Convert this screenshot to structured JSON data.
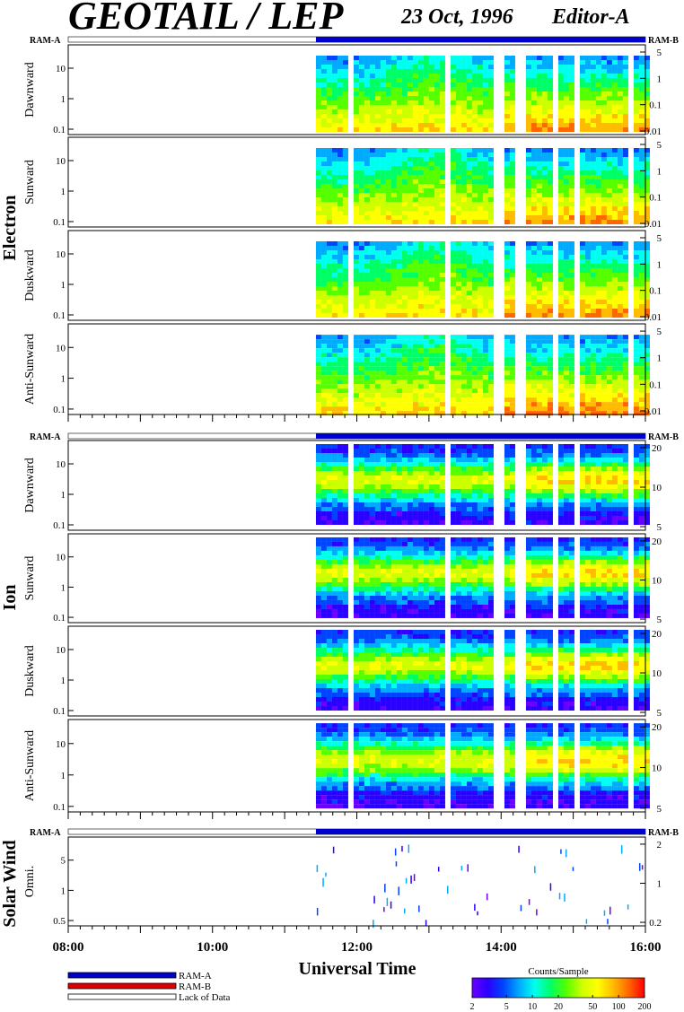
{
  "header": {
    "title": "GEOTAIL / LEP",
    "date": "23 Oct, 1996",
    "editor": "Editor-A"
  },
  "colors": {
    "ram_a": "#0000cc",
    "ram_b": "#dd0000",
    "spectrum": [
      "#6a00ff",
      "#2a00ff",
      "#0044ff",
      "#00aaff",
      "#00ffee",
      "#00ff66",
      "#55ff00",
      "#ccff00",
      "#ffff00",
      "#ffbb00",
      "#ff6600",
      "#ff0000"
    ]
  },
  "chart_data": {
    "type": "heatmap",
    "x_axis": {
      "label": "Universal Time",
      "range": [
        "08:00",
        "16:00"
      ],
      "ticks": [
        "08:00",
        "10:00",
        "12:00",
        "14:00",
        "16:00"
      ]
    },
    "data_start": "11:26",
    "ram_bar": {
      "left_label": "RAM-A",
      "right_label": "RAM-B"
    },
    "groups": [
      {
        "label": "Electron",
        "panels": [
          {
            "label": "Dawnward",
            "left_ticks": [
              "10",
              "1",
              "0.1"
            ],
            "right_ticks": [
              "5",
              "1",
              "0.1",
              "0.01"
            ]
          },
          {
            "label": "Sunward",
            "left_ticks": [
              "10",
              "1",
              "0.1"
            ],
            "right_ticks": [
              "5",
              "1",
              "0.1",
              "0.01"
            ]
          },
          {
            "label": "Duskward",
            "left_ticks": [
              "10",
              "1",
              "0.1"
            ],
            "right_ticks": [
              "5",
              "1",
              "0.1",
              "0.01"
            ]
          },
          {
            "label": "Anti-Sunward",
            "left_ticks": [
              "10",
              "1",
              "0.1"
            ],
            "right_ticks": [
              "5",
              "1",
              "0.1",
              "0.01"
            ]
          }
        ]
      },
      {
        "label": "Ion",
        "panels": [
          {
            "label": "Dawnward",
            "left_ticks": [
              "10",
              "1",
              "0.1"
            ],
            "right_ticks": [
              "20",
              "10",
              "5"
            ]
          },
          {
            "label": "Sunward",
            "left_ticks": [
              "10",
              "1",
              "0.1"
            ],
            "right_ticks": [
              "20",
              "10",
              "5"
            ]
          },
          {
            "label": "Duskward",
            "left_ticks": [
              "10",
              "1",
              "0.1"
            ],
            "right_ticks": [
              "20",
              "10",
              "5"
            ]
          },
          {
            "label": "Anti-Sunward",
            "left_ticks": [
              "10",
              "1",
              "0.1"
            ],
            "right_ticks": [
              "20",
              "10",
              "5"
            ]
          }
        ]
      },
      {
        "label": "Solar Wind",
        "panels": [
          {
            "label": "Omni.",
            "left_ticks": [
              "5",
              "1",
              "0.5"
            ],
            "right_ticks": [
              "2",
              "1",
              "0.2"
            ]
          }
        ]
      }
    ],
    "legend": [
      {
        "label": "RAM-A",
        "color": "#0000cc"
      },
      {
        "label": "RAM-B",
        "color": "#dd0000"
      },
      {
        "label": "Lack of Data",
        "color": "#ffffff"
      }
    ],
    "colorbar": {
      "title": "Counts/Sample",
      "ticks": [
        "2",
        "5",
        "10",
        "20",
        "50",
        "100",
        "200"
      ],
      "range": [
        2,
        200
      ],
      "scale": "log"
    }
  }
}
